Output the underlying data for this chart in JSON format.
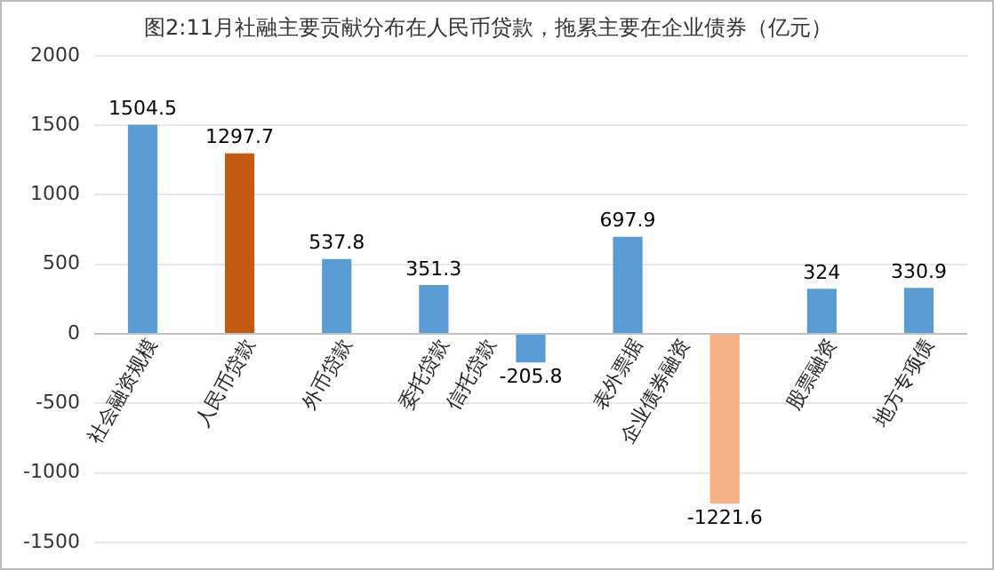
{
  "chart_data": {
    "type": "bar",
    "title": "图2:11月社融主要贡献分布在人民币贷款，拖累主要在企业债券（亿元）",
    "categories": [
      "社会融资规模",
      "人民币贷款",
      "外币贷款",
      "委托贷款",
      "信托贷款",
      "表外票据",
      "企业债券融资",
      "股票融资",
      "地方专项债"
    ],
    "values": [
      1504.5,
      1297.7,
      537.8,
      351.3,
      -205.8,
      697.9,
      -1221.6,
      324,
      330.9
    ],
    "colors": [
      "#5b9bd5",
      "#c55a11",
      "#5b9bd5",
      "#5b9bd5",
      "#5b9bd5",
      "#5b9bd5",
      "#f4b183",
      "#5b9bd5",
      "#5b9bd5"
    ],
    "ylim": [
      -1500,
      2000
    ],
    "yticks": [
      -1500,
      -1000,
      -500,
      0,
      500,
      1000,
      1500,
      2000
    ],
    "grid": "y",
    "data_labels": true
  }
}
